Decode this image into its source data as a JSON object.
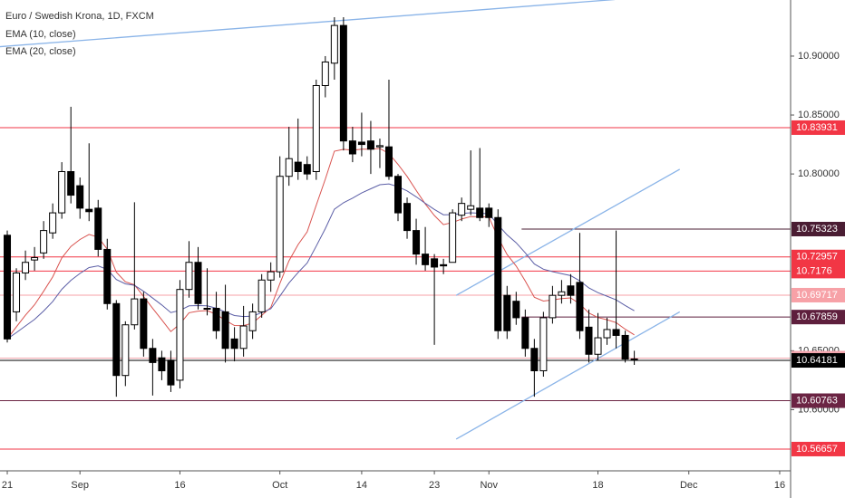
{
  "chart_data": {
    "type": "candlestick",
    "title": "Euro / Swedish Krona, 1D, FXCM",
    "indicators": [
      {
        "label": "EMA (10, close)",
        "period": 10,
        "color": "#d9534f"
      },
      {
        "label": "EMA (20, close)",
        "period": 20,
        "color": "#5b5ea6"
      }
    ],
    "open": [
      10.748,
      10.683,
      10.716,
      10.727,
      10.733,
      10.75,
      10.767,
      10.802,
      10.79,
      10.77,
      10.771,
      10.736,
      10.69,
      10.629,
      10.672,
      10.694,
      10.652,
      10.644,
      10.642,
      10.625,
      10.702,
      10.725,
      10.686,
      10.686,
      10.683,
      10.66,
      10.652,
      10.667,
      10.683,
      10.71,
      10.717,
      10.798,
      10.81,
      10.808,
      10.802,
      10.875,
      10.894,
      10.926,
      10.828,
      10.827,
      10.828,
      10.823,
      10.823,
      10.798,
      10.775,
      10.752,
      10.732,
      10.728,
      10.723,
      10.725,
      10.765,
      10.77,
      10.771,
      10.771,
      10.763,
      10.697,
      10.692,
      10.678,
      10.652,
      10.633,
      10.678,
      10.697,
      10.705,
      10.708,
      10.67,
      10.647,
      10.661,
      10.668,
      10.663,
      10.643
    ],
    "high": [
      10.752,
      10.72,
      10.735,
      10.738,
      10.76,
      10.775,
      10.81,
      10.857,
      10.797,
      10.826,
      10.778,
      10.745,
      10.693,
      10.675,
      10.776,
      10.7,
      10.66,
      10.65,
      10.65,
      10.71,
      10.743,
      10.738,
      10.72,
      10.7,
      10.706,
      10.67,
      10.688,
      10.69,
      10.715,
      10.725,
      10.815,
      10.84,
      10.847,
      10.815,
      10.88,
      10.9,
      10.933,
      10.933,
      10.84,
      10.852,
      10.845,
      10.83,
      10.88,
      10.8,
      10.78,
      10.762,
      10.755,
      10.732,
      10.728,
      10.77,
      10.78,
      10.82,
      10.822,
      10.775,
      10.77,
      10.705,
      10.7,
      10.685,
      10.66,
      10.683,
      10.705,
      10.71,
      10.715,
      10.75,
      10.685,
      10.682,
      10.678,
      10.752,
      10.667,
      10.65
    ],
    "low": [
      10.657,
      10.675,
      10.71,
      10.718,
      10.728,
      10.745,
      10.762,
      10.775,
      10.762,
      10.76,
      10.73,
      10.685,
      10.611,
      10.62,
      10.668,
      10.645,
      10.612,
      10.625,
      10.615,
      10.618,
      10.695,
      10.685,
      10.68,
      10.66,
      10.64,
      10.641,
      10.645,
      10.66,
      10.678,
      10.7,
      10.712,
      10.79,
      10.795,
      10.795,
      10.795,
      10.865,
      10.88,
      10.82,
      10.81,
      10.815,
      10.8,
      10.805,
      10.795,
      10.76,
      10.745,
      10.723,
      10.718,
      10.655,
      10.715,
      10.725,
      10.76,
      10.765,
      10.76,
      10.755,
      10.66,
      10.66,
      10.672,
      10.645,
      10.611,
      10.628,
      10.673,
      10.69,
      10.69,
      10.66,
      10.64,
      10.642,
      10.655,
      10.652,
      10.64,
      10.638
    ],
    "close": [
      10.66,
      10.716,
      10.725,
      10.729,
      10.752,
      10.767,
      10.802,
      10.782,
      10.771,
      10.768,
      10.736,
      10.69,
      10.629,
      10.672,
      10.694,
      10.652,
      10.64,
      10.633,
      10.621,
      10.702,
      10.725,
      10.69,
      10.686,
      10.667,
      10.652,
      10.652,
      10.671,
      10.683,
      10.71,
      10.717,
      10.798,
      10.813,
      10.802,
      10.8,
      10.875,
      10.895,
      10.926,
      10.828,
      10.817,
      10.825,
      10.821,
      10.824,
      10.798,
      10.767,
      10.752,
      10.732,
      10.723,
      10.721,
      10.722,
      10.767,
      10.775,
      10.773,
      10.763,
      10.763,
      10.667,
      10.667,
      10.678,
      10.652,
      10.633,
      10.678,
      10.697,
      10.7,
      10.697,
      10.667,
      10.647,
      10.661,
      10.668,
      10.663,
      10.643,
      10.642
    ],
    "xlim": [
      -0.8,
      86.2
    ],
    "xticks": [
      {
        "value": 0,
        "label": "21"
      },
      {
        "value": 8,
        "label": "Sep"
      },
      {
        "value": 19,
        "label": "16"
      },
      {
        "value": 30,
        "label": "Oct"
      },
      {
        "value": 39,
        "label": "14"
      },
      {
        "value": 47,
        "label": "23"
      },
      {
        "value": 53,
        "label": "Nov"
      },
      {
        "value": 65,
        "label": "18"
      },
      {
        "value": 75,
        "label": "Dec"
      },
      {
        "value": 85,
        "label": "16"
      }
    ],
    "ylim": [
      10.5481,
      10.9476
    ],
    "yticks": [
      {
        "value": 10.9,
        "label": "10.90000"
      },
      {
        "value": 10.85,
        "label": "10.85000"
      },
      {
        "value": 10.8,
        "label": "10.80000"
      },
      {
        "value": 10.65,
        "label": "10.65000"
      },
      {
        "value": 10.6,
        "label": "10.60000"
      }
    ],
    "levels": [
      {
        "value": 10.83931,
        "color": "#f23645"
      },
      {
        "value": 10.75323,
        "color": "#4a1d33",
        "start": 56.6
      },
      {
        "value": 10.72957,
        "color": "#f23645"
      },
      {
        "value": 10.7176,
        "color": "#f23645"
      },
      {
        "value": 10.69717,
        "color": "#f7a1a7"
      },
      {
        "value": 10.67859,
        "color": "#5e1f3d",
        "start": 56.6
      },
      {
        "value": 10.64376,
        "color": "#f3a6ae"
      },
      {
        "value": 10.64181,
        "color": "#000000"
      },
      {
        "value": 10.60763,
        "color": "#6b2443"
      },
      {
        "value": 10.56657,
        "color": "#f23645"
      }
    ],
    "trendlines": [
      {
        "points": [
          [
            -0.8,
            10.908
          ],
          [
            66.85,
            10.948
          ]
        ],
        "color": "#8ab4e8"
      },
      {
        "points": [
          [
            49.4,
            10.697
          ],
          [
            74.0,
            10.804
          ]
        ],
        "color": "#8ab4e8"
      },
      {
        "points": [
          [
            49.4,
            10.575
          ],
          [
            74.0,
            10.683
          ]
        ],
        "color": "#8ab4e8"
      }
    ]
  }
}
